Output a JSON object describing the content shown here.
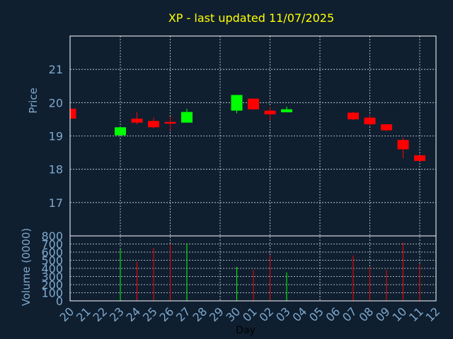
{
  "chart_data": {
    "type": "candlestick",
    "title": "XP - last updated 11/07/2025",
    "colors": {
      "up": "#00ff00",
      "down": "#ff0000",
      "background": "#0f1f30",
      "title": "#ffff00",
      "axis_text": "#7fa8cc",
      "grid": "#ffffff"
    },
    "price_panel": {
      "ylabel": "Price",
      "ylim": [
        16.0,
        22.0
      ],
      "yticks": [
        17,
        18,
        19,
        20,
        21
      ],
      "grid": true
    },
    "volume_panel": {
      "ylabel": "Volume (0000)",
      "ylim": [
        0,
        800
      ],
      "yticks": [
        0,
        100,
        200,
        300,
        400,
        500,
        600,
        700,
        800
      ],
      "grid": true
    },
    "x": {
      "xlabel": "Day",
      "tick_labels": [
        "20",
        "21",
        "22",
        "23",
        "24",
        "25",
        "26",
        "27",
        "28",
        "29",
        "30",
        "01",
        "02",
        "03",
        "04",
        "05",
        "06",
        "07",
        "08",
        "09",
        "10",
        "11",
        "12"
      ]
    },
    "candles": [
      {
        "day": "20",
        "open": 19.82,
        "high": 19.82,
        "low": 19.52,
        "close": 19.52,
        "volume": 0
      },
      {
        "day": "23",
        "open": 19.02,
        "high": 19.28,
        "low": 19.02,
        "close": 19.26,
        "volume": 640
      },
      {
        "day": "24",
        "open": 19.52,
        "high": 19.72,
        "low": 19.35,
        "close": 19.4,
        "volume": 480
      },
      {
        "day": "25",
        "open": 19.45,
        "high": 19.55,
        "low": 19.23,
        "close": 19.26,
        "volume": 650
      },
      {
        "day": "26",
        "open": 19.42,
        "high": 19.58,
        "low": 19.18,
        "close": 19.37,
        "volume": 700
      },
      {
        "day": "27",
        "open": 19.4,
        "high": 19.82,
        "low": 19.4,
        "close": 19.72,
        "volume": 710
      },
      {
        "day": "30",
        "open": 19.76,
        "high": 20.23,
        "low": 19.68,
        "close": 20.23,
        "volume": 420
      },
      {
        "day": "01",
        "open": 20.12,
        "high": 20.12,
        "low": 19.78,
        "close": 19.8,
        "volume": 380
      },
      {
        "day": "02",
        "open": 19.76,
        "high": 19.88,
        "low": 19.47,
        "close": 19.65,
        "volume": 560
      },
      {
        "day": "03",
        "open": 19.71,
        "high": 19.88,
        "low": 19.71,
        "close": 19.8,
        "volume": 350
      },
      {
        "day": "07",
        "open": 19.7,
        "high": 19.72,
        "low": 19.48,
        "close": 19.5,
        "volume": 560
      },
      {
        "day": "08",
        "open": 19.55,
        "high": 19.62,
        "low": 19.3,
        "close": 19.35,
        "volume": 420
      },
      {
        "day": "09",
        "open": 19.35,
        "high": 19.35,
        "low": 19.15,
        "close": 19.17,
        "volume": 380
      },
      {
        "day": "10",
        "open": 18.88,
        "high": 18.95,
        "low": 18.33,
        "close": 18.6,
        "volume": 720
      },
      {
        "day": "11",
        "open": 18.42,
        "high": 18.42,
        "low": 18.25,
        "close": 18.25,
        "volume": 460
      }
    ]
  }
}
